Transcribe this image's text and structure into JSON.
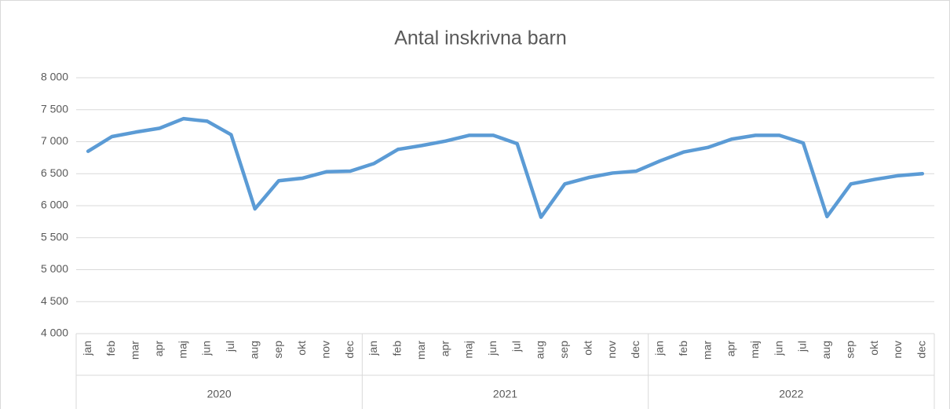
{
  "chart_data": {
    "type": "line",
    "title": "Antal inskrivna barn",
    "categories": [
      "jan",
      "feb",
      "mar",
      "apr",
      "maj",
      "jun",
      "jul",
      "aug",
      "sep",
      "okt",
      "nov",
      "dec",
      "jan",
      "feb",
      "mar",
      "apr",
      "maj",
      "jun",
      "jul",
      "aug",
      "sep",
      "okt",
      "nov",
      "dec",
      "jan",
      "feb",
      "mar",
      "apr",
      "maj",
      "jun",
      "jul",
      "aug",
      "sep",
      "okt",
      "nov",
      "dec"
    ],
    "category_groups": [
      "2020",
      "2021",
      "2022"
    ],
    "series": [
      {
        "name": "Antal inskrivna barn",
        "color": "#5b9bd5",
        "values": [
          6850,
          7080,
          7150,
          7210,
          7360,
          7320,
          7110,
          5950,
          6390,
          6430,
          6530,
          6540,
          6660,
          6880,
          6940,
          7010,
          7100,
          7100,
          6970,
          5820,
          6340,
          6440,
          6510,
          6540,
          6700,
          6840,
          6910,
          7040,
          7100,
          7100,
          6980,
          5830,
          6340,
          6410,
          6470,
          6500
        ]
      }
    ],
    "ylim": [
      4000,
      8000
    ],
    "yticks": [
      {
        "value": 4000,
        "label": "4 000"
      },
      {
        "value": 4500,
        "label": "4 500"
      },
      {
        "value": 5000,
        "label": "5 000"
      },
      {
        "value": 5500,
        "label": "5 500"
      },
      {
        "value": 6000,
        "label": "6 000"
      },
      {
        "value": 6500,
        "label": "6 500"
      },
      {
        "value": 7000,
        "label": "7 000"
      },
      {
        "value": 7500,
        "label": "7 500"
      },
      {
        "value": 8000,
        "label": "8 000"
      }
    ],
    "grid": true
  }
}
